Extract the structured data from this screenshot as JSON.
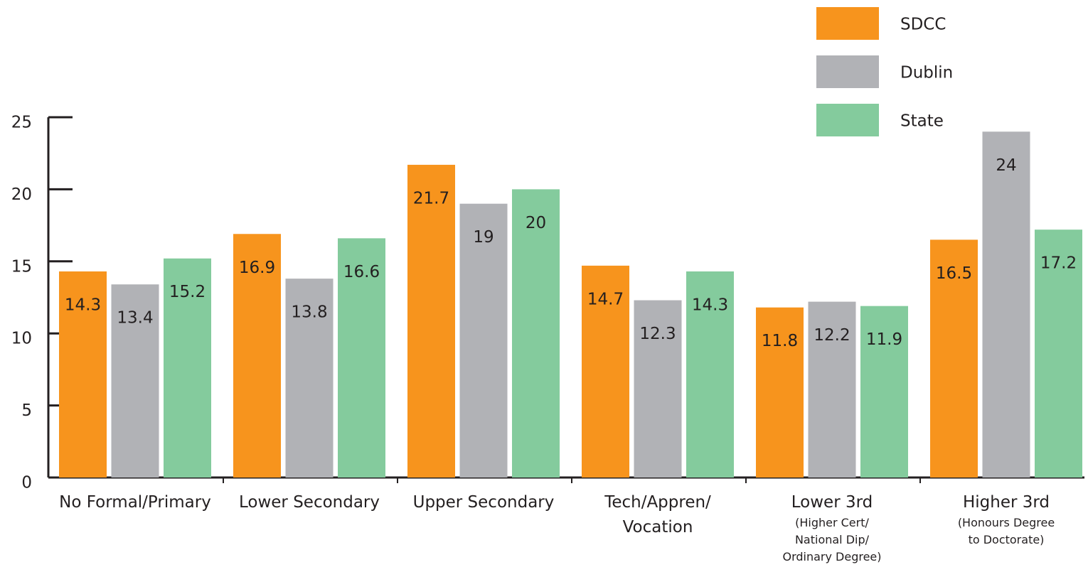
{
  "chart_data": {
    "type": "bar",
    "categories": [
      "No Formal/Primary",
      "Lower Secondary",
      "Upper Secondary",
      "Tech/Appren/\nVocation",
      "Lower 3rd",
      "Higher 3rd"
    ],
    "category_notes": [
      null,
      null,
      null,
      null,
      "(Higher Cert/\nNational Dip/\nOrdinary Degree)",
      "(Honours Degree\nto Doctorate)"
    ],
    "series": [
      {
        "name": "SDCC",
        "color": "#f7941d",
        "values": [
          14.3,
          16.9,
          21.7,
          14.7,
          11.8,
          16.5
        ]
      },
      {
        "name": "Dublin",
        "color": "#b1b2b6",
        "values": [
          13.4,
          13.8,
          19,
          12.3,
          12.2,
          24
        ]
      },
      {
        "name": "State",
        "color": "#84cb9d",
        "values": [
          15.2,
          16.6,
          20,
          14.3,
          11.9,
          17.2
        ]
      }
    ],
    "ylim": [
      0,
      25
    ],
    "yticks": [
      0,
      5,
      10,
      15,
      20,
      25
    ],
    "legend": "top-right"
  }
}
